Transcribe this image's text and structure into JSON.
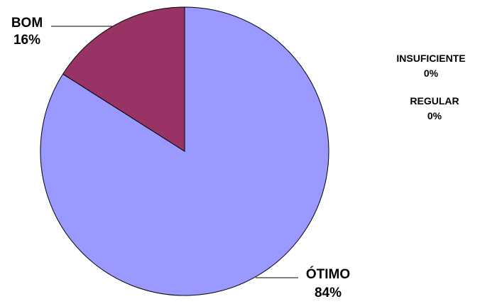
{
  "chart_data": {
    "type": "pie",
    "title": "",
    "slices": [
      {
        "label": "ÓTIMO",
        "value": 84,
        "value_label": "84%",
        "color": "#9999ff"
      },
      {
        "label": "BOM",
        "value": 16,
        "value_label": "16%",
        "color": "#993366"
      },
      {
        "label": "INSUFICIENTE",
        "value": 0,
        "value_label": "0%",
        "color": "#ffffcc"
      },
      {
        "label": "REGULAR",
        "value": 0,
        "value_label": "0%",
        "color": "#ccffff"
      }
    ],
    "legend": "none",
    "stroke_color": "#000000"
  }
}
